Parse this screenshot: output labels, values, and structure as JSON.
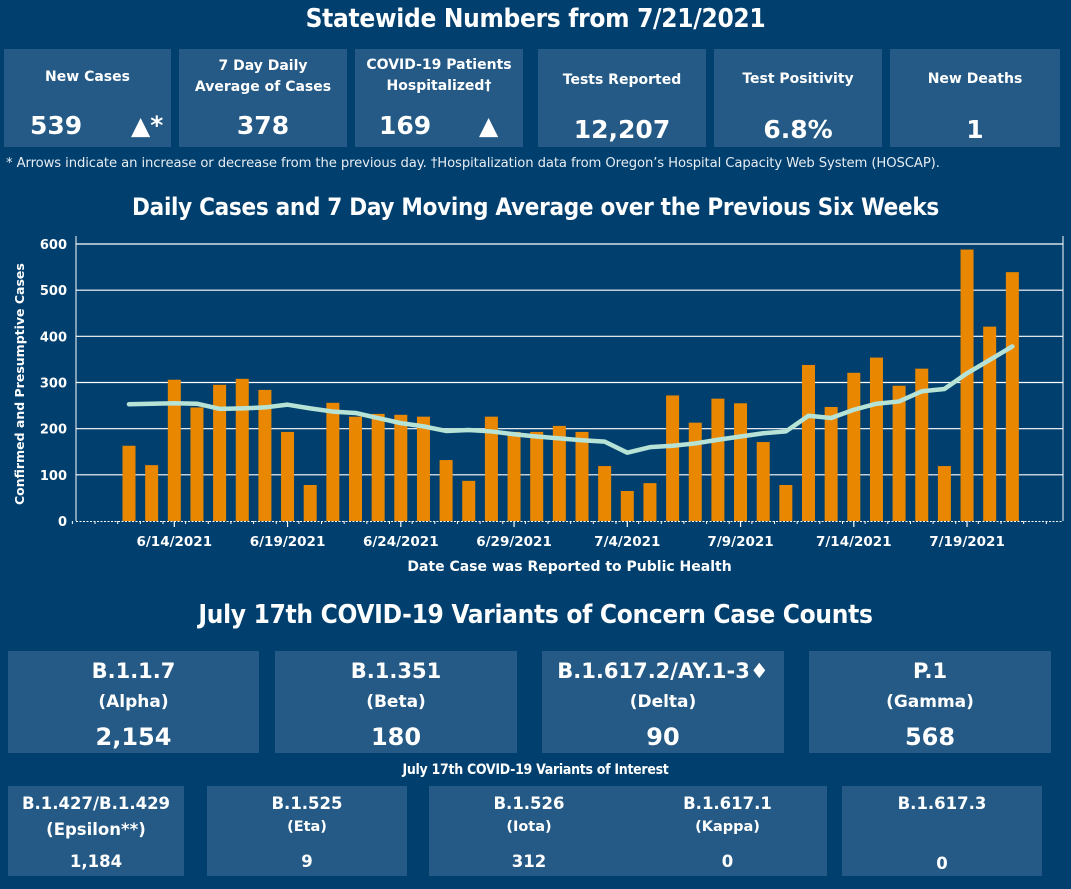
{
  "header": {
    "title": "Statewide Numbers from 7/21/2021"
  },
  "kpis": [
    {
      "label": "New Cases",
      "value": "539",
      "trend": "▲*",
      "trend_icon": "up-arrow"
    },
    {
      "label": "7 Day Daily Average of Cases",
      "value": "378"
    },
    {
      "label": "COVID-19 Patients Hospitalized†",
      "value": "169",
      "trend": "▲",
      "trend_icon": "up-arrow"
    },
    {
      "label": "Tests Reported",
      "value": "12,207"
    },
    {
      "label": "Test Positivity",
      "value": "6.8%"
    },
    {
      "label": "New Deaths",
      "value": "1"
    }
  ],
  "footnote": "* Arrows indicate an increase or decrease from the previous day. †Hospitalization data from Oregon’s Hospital Capacity Web System (HOSCAP).",
  "colors": {
    "background": "#003f6e",
    "tile": "#245a85",
    "bar": "#e98800",
    "line": "#b7e2d6",
    "grid": "#ffffff"
  },
  "chart_data": {
    "type": "bar",
    "title": "Daily Cases and 7 Day Moving Average over the Previous Six Weeks",
    "xlabel": "Date Case was Reported to Public Health",
    "ylabel": "Confirmed and Presumptive Cases",
    "ylim": [
      0,
      600
    ],
    "yticks": [
      0,
      100,
      200,
      300,
      400,
      500,
      600
    ],
    "grid": true,
    "x_range": [
      "6/10/2021",
      "7/23/2021"
    ],
    "xtick_labels": [
      "6/14/2021",
      "6/19/2021",
      "6/24/2021",
      "6/29/2021",
      "7/4/2021",
      "7/9/2021",
      "7/14/2021",
      "7/19/2021"
    ],
    "categories": [
      "6/12",
      "6/13",
      "6/14",
      "6/15",
      "6/16",
      "6/17",
      "6/18",
      "6/19",
      "6/20",
      "6/21",
      "6/22",
      "6/23",
      "6/24",
      "6/25",
      "6/26",
      "6/27",
      "6/28",
      "6/29",
      "6/30",
      "7/1",
      "7/2",
      "7/3",
      "7/4",
      "7/5",
      "7/6",
      "7/7",
      "7/8",
      "7/9",
      "7/10",
      "7/11",
      "7/12",
      "7/13",
      "7/14",
      "7/15",
      "7/16",
      "7/17",
      "7/18",
      "7/19",
      "7/20",
      "7/21"
    ],
    "series": [
      {
        "name": "Daily Cases",
        "type": "bar",
        "values": [
          163,
          121,
          306,
          246,
          295,
          308,
          284,
          193,
          78,
          256,
          226,
          232,
          230,
          226,
          132,
          87,
          226,
          193,
          193,
          206,
          193,
          119,
          65,
          82,
          272,
          213,
          265,
          255,
          171,
          78,
          338,
          247,
          321,
          354,
          293,
          330,
          119,
          588,
          421,
          539
        ]
      },
      {
        "name": "7 Day Moving Average",
        "type": "line",
        "values": [
          253,
          254,
          255,
          254,
          243,
          244,
          246,
          252,
          244,
          237,
          234,
          223,
          212,
          205,
          195,
          197,
          194,
          188,
          183,
          179,
          175,
          172,
          148,
          160,
          163,
          168,
          176,
          183,
          190,
          194,
          228,
          223,
          241,
          254,
          259,
          281,
          286,
          320,
          349,
          378
        ]
      }
    ]
  },
  "variants_of_concern": {
    "title": "July 17th  COVID-19 Variants of Concern Case Counts",
    "items": [
      {
        "name": "B.1.1.7",
        "alias": "(Alpha)",
        "count": "2,154"
      },
      {
        "name": "B.1.351",
        "alias": "(Beta)",
        "count": "180"
      },
      {
        "name": "B.1.617.2/AY.1-3♦",
        "alias": "(Delta)",
        "count": "90"
      },
      {
        "name": "P.1",
        "alias": "(Gamma)",
        "count": "568"
      }
    ]
  },
  "variants_of_interest": {
    "title": "July 17th COVID-19 Variants of Interest",
    "items": [
      {
        "name": "B.1.427/B.1.429",
        "alias": "(Epsilon**)",
        "count": "1,184"
      },
      {
        "name": "B.1.525",
        "alias": "(Eta)",
        "count": "9"
      },
      {
        "name": "B.1.526",
        "alias": "(Iota)",
        "count": "312"
      },
      {
        "name": "B.1.617.1",
        "alias": "(Kappa)",
        "count": "0"
      },
      {
        "name": "B.1.617.3",
        "alias": "",
        "count": "0"
      }
    ]
  }
}
